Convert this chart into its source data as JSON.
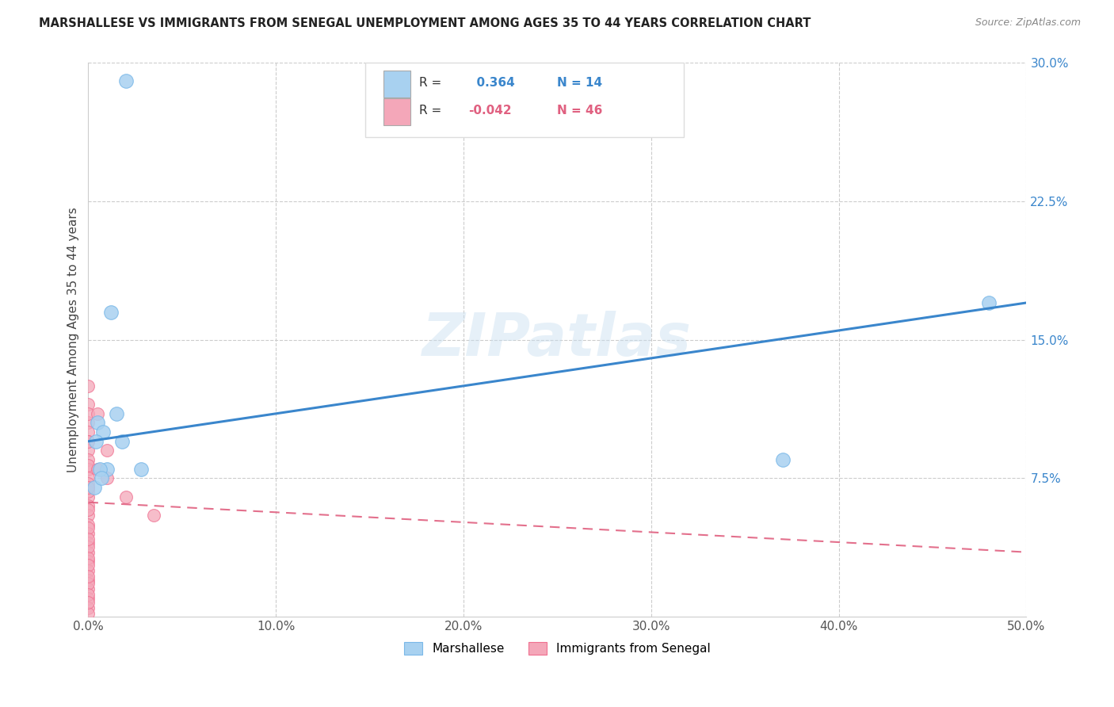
{
  "title": "MARSHALLESE VS IMMIGRANTS FROM SENEGAL UNEMPLOYMENT AMONG AGES 35 TO 44 YEARS CORRELATION CHART",
  "source": "Source: ZipAtlas.com",
  "xlabel_vals": [
    0.0,
    10.0,
    20.0,
    30.0,
    40.0,
    50.0
  ],
  "ylabel_vals": [
    7.5,
    15.0,
    22.5,
    30.0
  ],
  "ylabel_ticks": [
    "7.5%",
    "15.0%",
    "22.5%",
    "30.0%"
  ],
  "xlim": [
    0,
    50
  ],
  "ylim": [
    0,
    30
  ],
  "blue_label": "Marshallese",
  "pink_label": "Immigrants from Senegal",
  "blue_R": "0.364",
  "blue_N": "14",
  "pink_R": "-0.042",
  "pink_N": "46",
  "blue_color": "#a8d1f0",
  "pink_color": "#f4a7b9",
  "blue_edge_color": "#7ab8e8",
  "pink_edge_color": "#f07090",
  "blue_line_color": "#3a86cc",
  "pink_line_color": "#e06080",
  "watermark": "ZIPatlas",
  "blue_x": [
    2.0,
    0.5,
    1.2,
    1.5,
    0.8,
    0.4,
    1.0,
    37.0,
    2.8,
    48.0,
    0.6,
    0.3,
    1.8,
    0.7
  ],
  "blue_y": [
    29.0,
    10.5,
    16.5,
    11.0,
    10.0,
    9.5,
    8.0,
    8.5,
    8.0,
    17.0,
    8.0,
    7.0,
    9.5,
    7.5
  ],
  "pink_x": [
    0.0,
    0.0,
    0.0,
    0.0,
    0.0,
    0.0,
    0.0,
    0.0,
    0.0,
    0.0,
    0.0,
    0.0,
    0.0,
    0.0,
    0.0,
    0.0,
    0.0,
    0.0,
    0.0,
    0.0,
    0.0,
    0.0,
    0.0,
    0.0,
    0.0,
    0.0,
    0.0,
    0.0,
    0.0,
    0.0,
    0.5,
    0.5,
    1.0,
    1.0,
    2.0,
    3.5,
    0.0,
    0.0,
    0.0,
    0.0,
    0.0,
    0.0,
    0.0,
    0.0,
    0.0,
    0.0
  ],
  "pink_y": [
    11.5,
    10.5,
    10.0,
    9.5,
    9.0,
    8.5,
    8.0,
    7.5,
    7.0,
    6.5,
    6.0,
    5.5,
    5.0,
    4.5,
    4.0,
    3.5,
    3.0,
    2.5,
    2.0,
    1.5,
    1.0,
    0.5,
    0.2,
    7.2,
    6.8,
    8.2,
    12.5,
    9.5,
    11.0,
    7.0,
    11.0,
    8.0,
    9.0,
    7.5,
    6.5,
    5.5,
    3.8,
    3.2,
    2.8,
    1.8,
    1.2,
    0.8,
    5.8,
    4.8,
    4.2,
    2.2
  ],
  "blue_line_x0": 0.0,
  "blue_line_y0": 9.5,
  "blue_line_x1": 50.0,
  "blue_line_y1": 17.0,
  "pink_line_x0": 0.0,
  "pink_line_y0": 6.2,
  "pink_line_x1": 50.0,
  "pink_line_y1": 3.5
}
